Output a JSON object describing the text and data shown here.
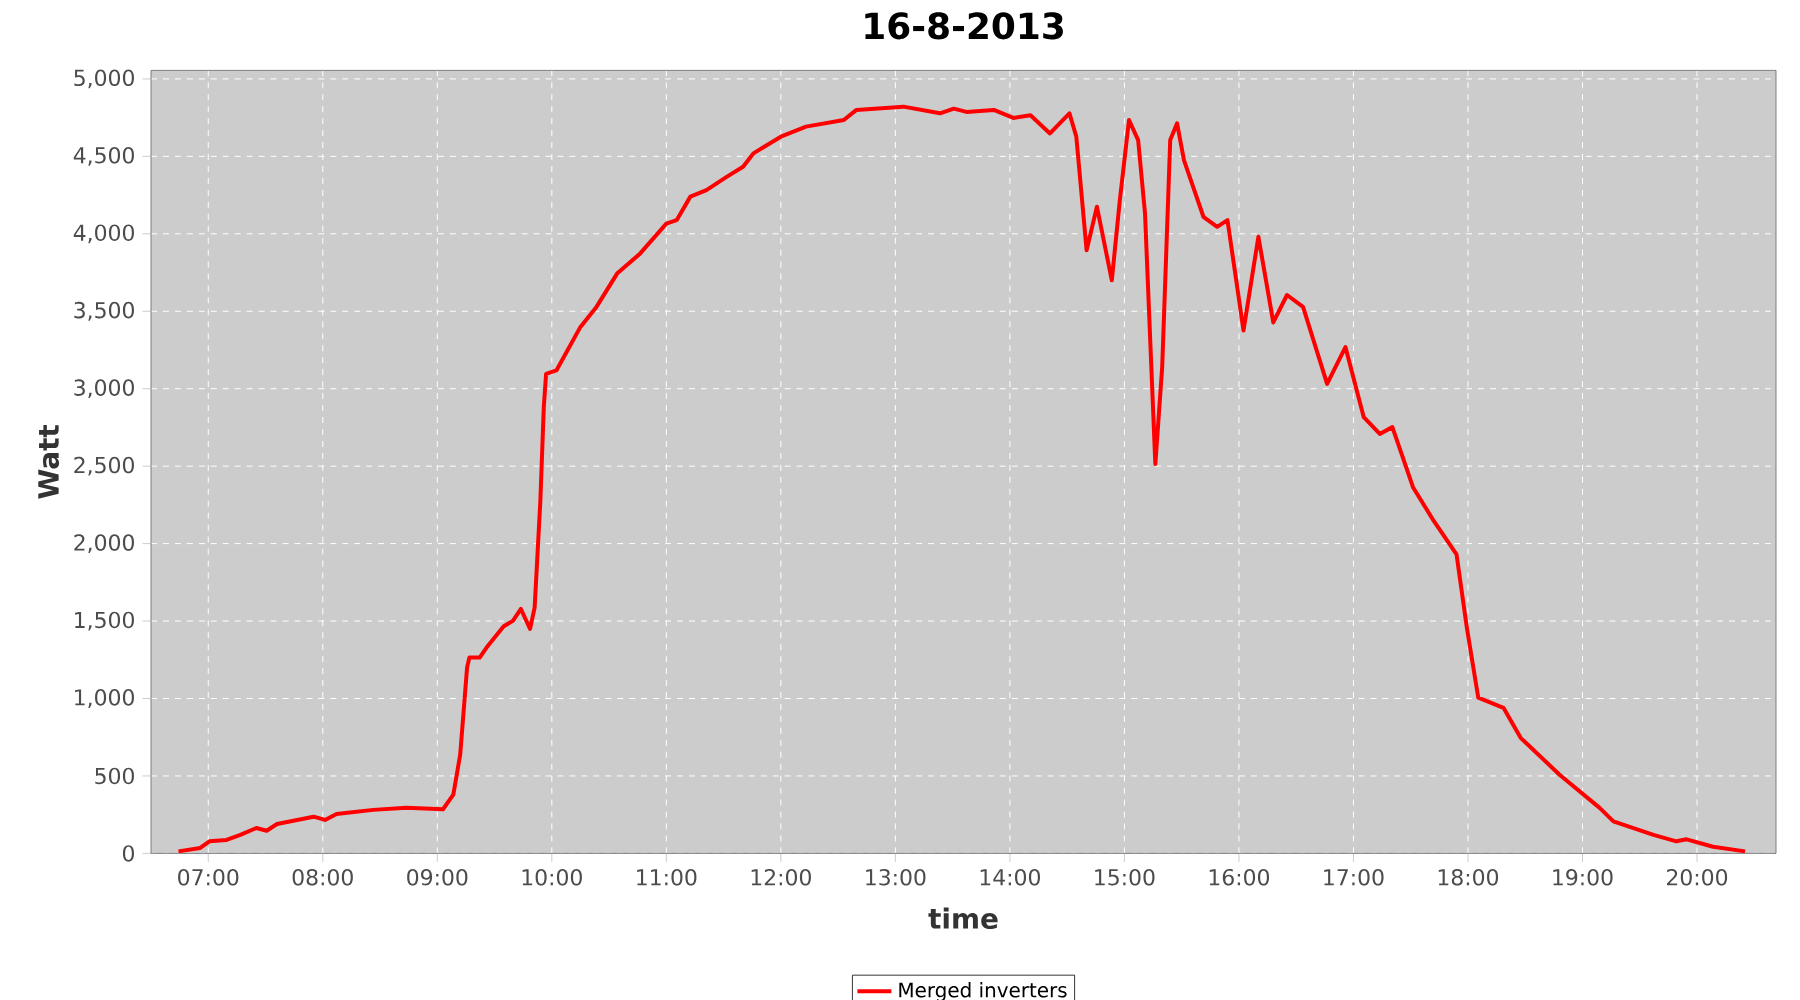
{
  "chart_data": {
    "type": "line",
    "title": "16-8-2013",
    "xlabel": "time",
    "ylabel": "Watt",
    "x": [
      6.74,
      6.93,
      7.01,
      7.16,
      7.28,
      7.42,
      7.51,
      7.6,
      7.92,
      8.02,
      8.12,
      8.44,
      8.73,
      9.05,
      9.14,
      9.2,
      9.26,
      9.28,
      9.37,
      9.43,
      9.58,
      9.66,
      9.73,
      9.81,
      9.85,
      9.9,
      9.93,
      9.95,
      10.04,
      10.25,
      10.39,
      10.57,
      10.77,
      11.0,
      11.09,
      11.21,
      11.35,
      11.53,
      11.67,
      11.76,
      12.0,
      12.22,
      12.55,
      12.66,
      13.07,
      13.39,
      13.51,
      13.62,
      13.86,
      14.03,
      14.18,
      14.35,
      14.52,
      14.58,
      14.67,
      14.76,
      14.89,
      14.96,
      15.04,
      15.12,
      15.18,
      15.27,
      15.33,
      15.4,
      15.46,
      15.52,
      15.58,
      15.69,
      15.81,
      15.9,
      16.04,
      16.17,
      16.3,
      16.42,
      16.56,
      16.77,
      16.93,
      17.09,
      17.23,
      17.34,
      17.52,
      17.7,
      17.9,
      17.99,
      18.09,
      18.31,
      18.46,
      18.8,
      19.15,
      19.27,
      19.62,
      19.82,
      19.91,
      20.14,
      20.42
    ],
    "series": [
      {
        "name": "Merged inverters",
        "color": "#ff0000",
        "values": [
          13,
          35,
          78,
          87,
          120,
          164,
          146,
          190,
          237,
          216,
          255,
          281,
          294,
          285,
          379,
          638,
          1199,
          1264,
          1264,
          1329,
          1466,
          1501,
          1578,
          1449,
          1587,
          2277,
          2881,
          3096,
          3118,
          3399,
          3528,
          3743,
          3872,
          4066,
          4088,
          4240,
          4282,
          4369,
          4433,
          4519,
          4627,
          4692,
          4735,
          4800,
          4821,
          4778,
          4808,
          4787,
          4800,
          4748,
          4765,
          4648,
          4778,
          4627,
          3894,
          4175,
          3700,
          4217,
          4735,
          4605,
          4131,
          2514,
          3140,
          4605,
          4713,
          4476,
          4347,
          4110,
          4045,
          4088,
          3376,
          3981,
          3428,
          3605,
          3528,
          3031,
          3269,
          2816,
          2708,
          2752,
          2364,
          2148,
          1931,
          1458,
          1005,
          940,
          746,
          508,
          294,
          207,
          120,
          78,
          91,
          43,
          13
        ]
      }
    ],
    "xlim": [
      6.5,
      20.69
    ],
    "ylim": [
      0,
      5055
    ],
    "xticks": [
      {
        "value": 7,
        "label": "07:00"
      },
      {
        "value": 8,
        "label": "08:00"
      },
      {
        "value": 9,
        "label": "09:00"
      },
      {
        "value": 10,
        "label": "10:00"
      },
      {
        "value": 11,
        "label": "11:00"
      },
      {
        "value": 12,
        "label": "12:00"
      },
      {
        "value": 13,
        "label": "13:00"
      },
      {
        "value": 14,
        "label": "14:00"
      },
      {
        "value": 15,
        "label": "15:00"
      },
      {
        "value": 16,
        "label": "16:00"
      },
      {
        "value": 17,
        "label": "17:00"
      },
      {
        "value": 18,
        "label": "18:00"
      },
      {
        "value": 19,
        "label": "19:00"
      },
      {
        "value": 20,
        "label": "20:00"
      }
    ],
    "yticks": [
      0,
      500,
      {
        "value": 1000,
        "label": "1,000"
      },
      {
        "value": 1500,
        "label": "1,500"
      },
      {
        "value": 2000,
        "label": "2,000"
      },
      {
        "value": 2500,
        "label": "2,500"
      },
      {
        "value": 3000,
        "label": "3,000"
      },
      {
        "value": 3500,
        "label": "3,500"
      },
      {
        "value": 4000,
        "label": "4,000"
      },
      {
        "value": 4500,
        "label": "4,500"
      },
      {
        "value": 5000,
        "label": "5,000"
      }
    ],
    "grid": true,
    "legend": "bottom"
  }
}
